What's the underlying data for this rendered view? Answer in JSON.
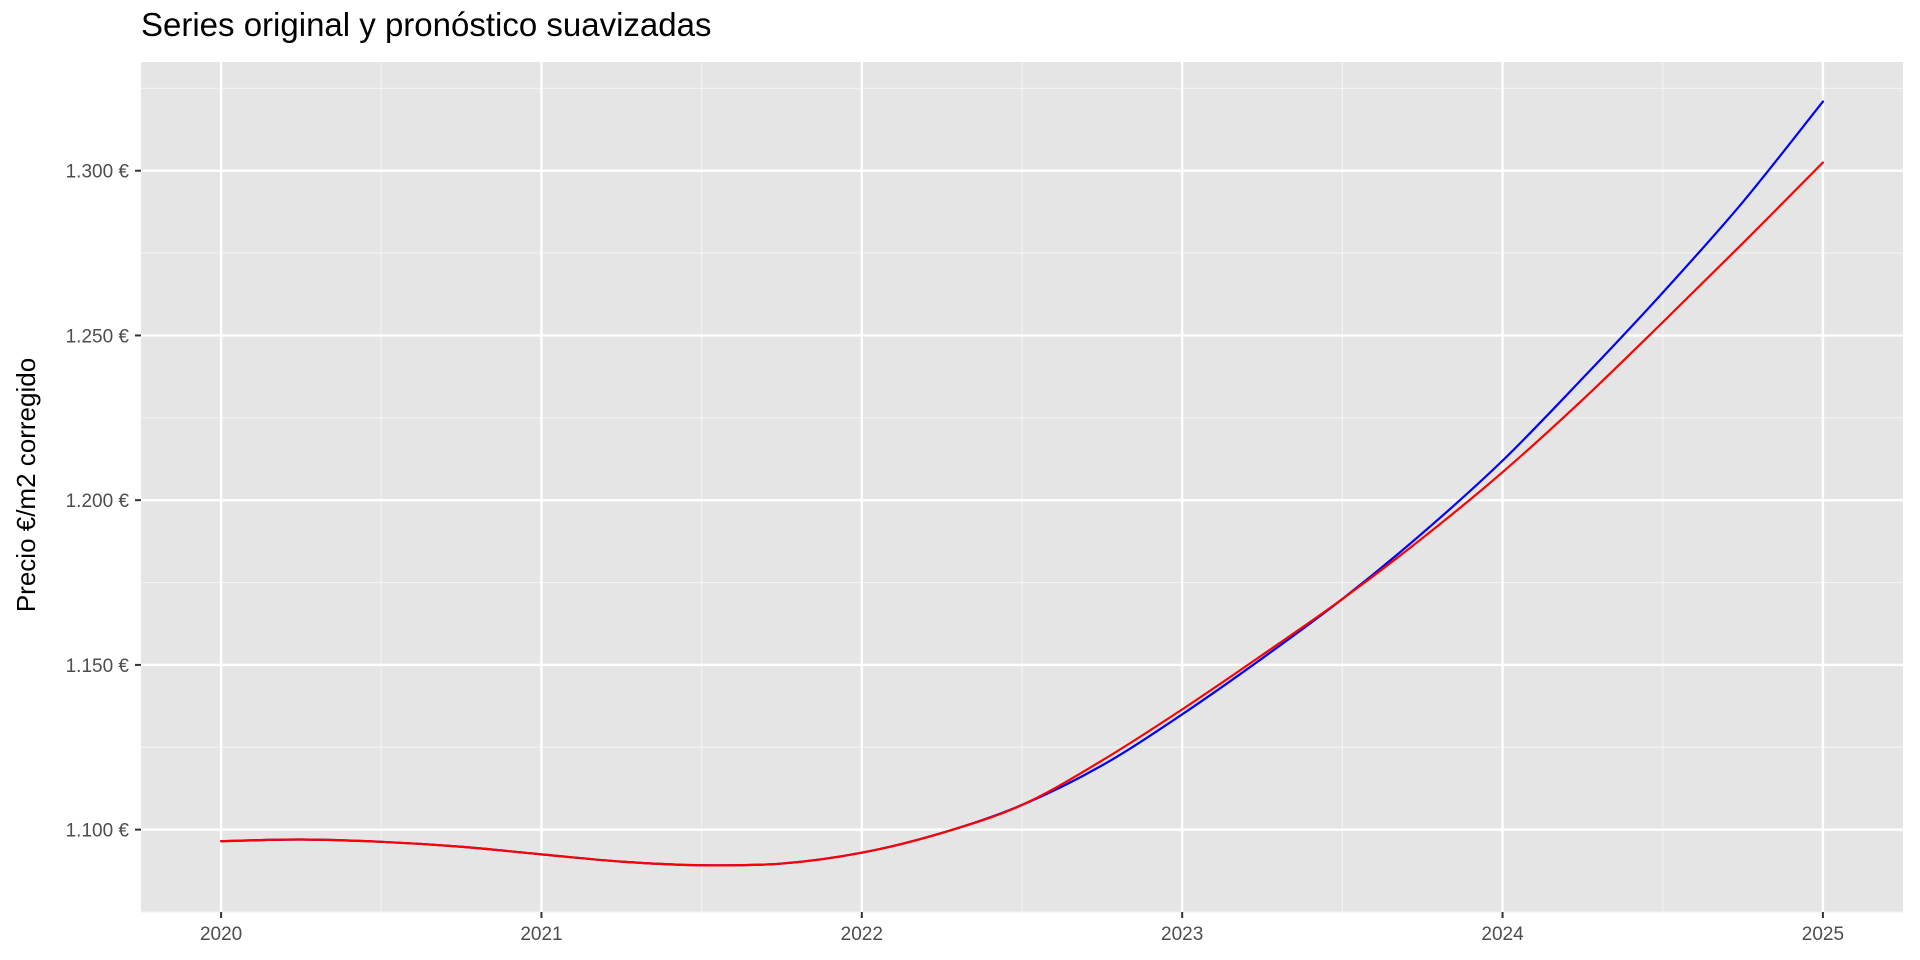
{
  "chart_data": {
    "type": "line",
    "title": "Series original y pronóstico suavizadas",
    "xlabel": "",
    "ylabel": "Precio €/m2 corregido",
    "xlim": [
      2019.75,
      2025.25
    ],
    "ylim": [
      1075,
      1333
    ],
    "x_ticks": [
      2020,
      2021,
      2022,
      2023,
      2024,
      2025
    ],
    "x_tick_labels": [
      "2020",
      "2021",
      "2022",
      "2023",
      "2024",
      "2025"
    ],
    "y_ticks": [
      1100,
      1150,
      1200,
      1250,
      1300
    ],
    "y_tick_labels": [
      "1.100 €",
      "1.150 €",
      "1.200 €",
      "1.250 €",
      "1.300 €"
    ],
    "grid": true,
    "background": "#e5e5e5",
    "x": [
      2020,
      2020.25,
      2020.5,
      2020.75,
      2021,
      2021.25,
      2021.5,
      2021.75,
      2022,
      2022.25,
      2022.5,
      2022.75,
      2023,
      2023.25,
      2023.5,
      2023.75,
      2024,
      2024.25,
      2024.5,
      2024.75,
      2025
    ],
    "series": [
      {
        "color": "#0000ff",
        "values": [
          1096.5,
          1097.0,
          1096.3,
          1094.8,
          1092.5,
          1090.3,
          1089.2,
          1089.7,
          1093.0,
          1099.0,
          1107.5,
          1119.5,
          1135.0,
          1152.0,
          1170.0,
          1190.0,
          1212.0,
          1237.0,
          1263.0,
          1290.5,
          1321.0
        ]
      },
      {
        "color": "#ff0000",
        "values": [
          1096.5,
          1097.0,
          1096.3,
          1094.8,
          1092.5,
          1090.3,
          1089.2,
          1089.7,
          1093.0,
          1099.0,
          1107.5,
          1121.0,
          1136.5,
          1153.0,
          1170.0,
          1188.5,
          1208.5,
          1230.5,
          1254.0,
          1278.0,
          1302.5
        ]
      }
    ]
  }
}
